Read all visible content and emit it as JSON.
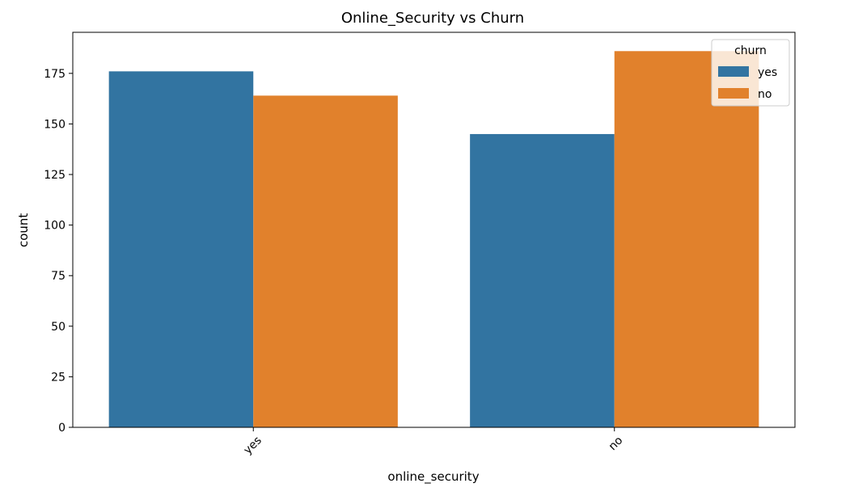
{
  "chart_data": {
    "type": "bar",
    "title": "Online_Security vs Churn",
    "xlabel": "online_security",
    "ylabel": "count",
    "categories": [
      "yes",
      "no"
    ],
    "series": [
      {
        "name": "yes",
        "values": [
          176,
          145
        ],
        "color": "#3274a1"
      },
      {
        "name": "no",
        "values": [
          164,
          186
        ],
        "color": "#e1812c"
      }
    ],
    "ylim": [
      0,
      195.3
    ],
    "yticks": [
      0,
      25,
      50,
      75,
      100,
      125,
      150,
      175
    ],
    "legend": {
      "title": "churn",
      "placement": "top-right"
    },
    "grid": false,
    "xtick_rotation": -45
  }
}
